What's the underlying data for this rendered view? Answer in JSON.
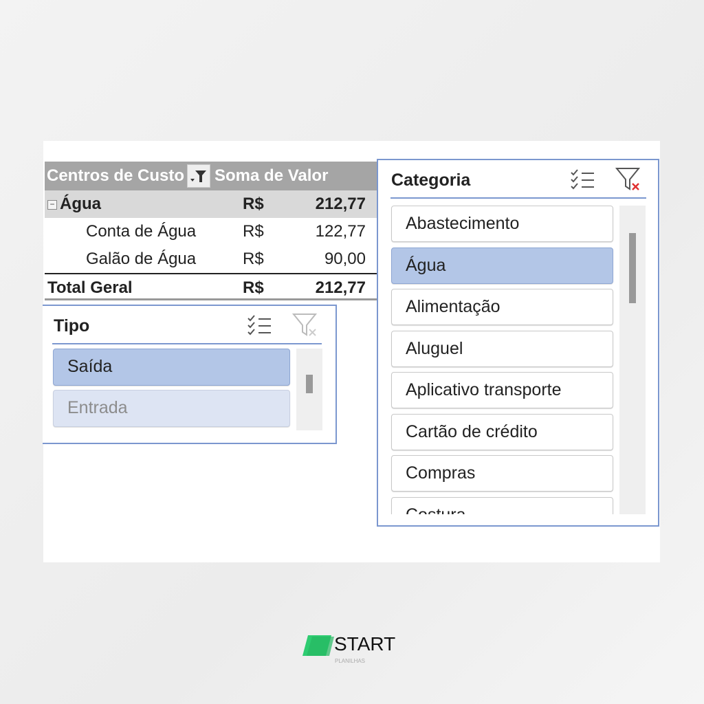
{
  "pivot": {
    "headers": {
      "col1": "Centros de Custo",
      "col2": "Soma de Valor"
    },
    "group": {
      "label": "Água",
      "currency": "R$",
      "value": "212,77"
    },
    "rows": [
      {
        "label": "Conta de Água",
        "currency": "R$",
        "value": "122,77"
      },
      {
        "label": "Galão de Água",
        "currency": "R$",
        "value": "90,00"
      }
    ],
    "total": {
      "label": "Total Geral",
      "currency": "R$",
      "value": "212,77"
    }
  },
  "tipo_slicer": {
    "title": "Tipo",
    "items": [
      {
        "label": "Saída",
        "state": "selected"
      },
      {
        "label": "Entrada",
        "state": "no-data"
      }
    ]
  },
  "categoria_slicer": {
    "title": "Categoria",
    "items": [
      {
        "label": "Abastecimento",
        "state": "normal"
      },
      {
        "label": "Água",
        "state": "selected"
      },
      {
        "label": "Alimentação",
        "state": "normal"
      },
      {
        "label": "Aluguel",
        "state": "normal"
      },
      {
        "label": "Aplicativo transporte",
        "state": "normal"
      },
      {
        "label": "Cartão de crédito",
        "state": "normal"
      },
      {
        "label": "Compras",
        "state": "normal"
      },
      {
        "label": "Costura",
        "state": "normal"
      }
    ]
  },
  "brand": {
    "name": "START",
    "sub": "PLANILHAS",
    "color": "#2ecc71"
  },
  "colors": {
    "slicer_border": "#7b97cf",
    "selected": "#b3c6e7",
    "header": "#a5a5a5"
  }
}
